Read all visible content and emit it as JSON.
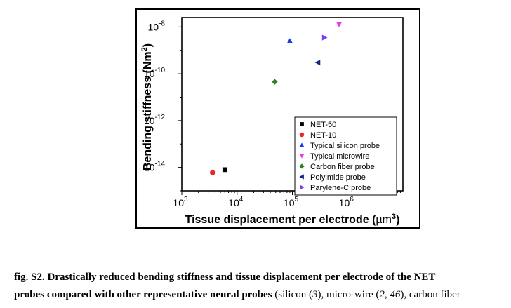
{
  "chart_data": {
    "type": "scatter",
    "xscale": "log",
    "yscale": "log",
    "xlabel": "Tissue displacement per electrode",
    "xlabel_unit": "µm",
    "xlabel_unit_exp": "3",
    "ylabel": "Bending stiffness",
    "ylabel_unit": "Nm",
    "ylabel_unit_exp": "2",
    "xlim_exp": [
      3,
      7
    ],
    "ylim_exp": [
      -15,
      -7.6
    ],
    "x_tick_exps": [
      3,
      4,
      5,
      6
    ],
    "y_tick_exps": [
      -8,
      -10,
      -12,
      -14
    ],
    "tick_base": "10",
    "legend_position": "bottom-right",
    "series": [
      {
        "name": "NET-50",
        "marker": "square",
        "color": "#000000",
        "x": 6000,
        "y": 8e-15
      },
      {
        "name": "NET-10",
        "marker": "circle",
        "color": "#e8262b",
        "x": 3600,
        "y": 6e-15
      },
      {
        "name": "Typical silicon probe",
        "marker": "triangle-up",
        "color": "#1a3fe0",
        "x": 90000,
        "y": 2.5e-09
      },
      {
        "name": "Typical microwire",
        "marker": "triangle-down",
        "color": "#e33ce8",
        "x": 700000,
        "y": 1.3e-08
      },
      {
        "name": "Carbon fiber probe",
        "marker": "diamond",
        "color": "#2f7d1f",
        "x": 48000,
        "y": 4.5e-11
      },
      {
        "name": "Polyimide probe",
        "marker": "triangle-left",
        "color": "#1a237e",
        "x": 290000,
        "y": 3e-10
      },
      {
        "name": "Parylene-C probe",
        "marker": "triangle-right",
        "color": "#7a3ef0",
        "x": 380000,
        "y": 3.5e-09
      }
    ]
  },
  "caption": {
    "line1": "fig. S2. Drastically reduced bending stiffness and tissue displacement per electrode of the NET",
    "line2_bold": "probes compared with other representative neural probes",
    "line2_a": " (silicon (",
    "ref1": "3",
    "line2_b": "), micro-wire (",
    "ref2": "2, 46",
    "line2_c": "), carbon fiber"
  }
}
